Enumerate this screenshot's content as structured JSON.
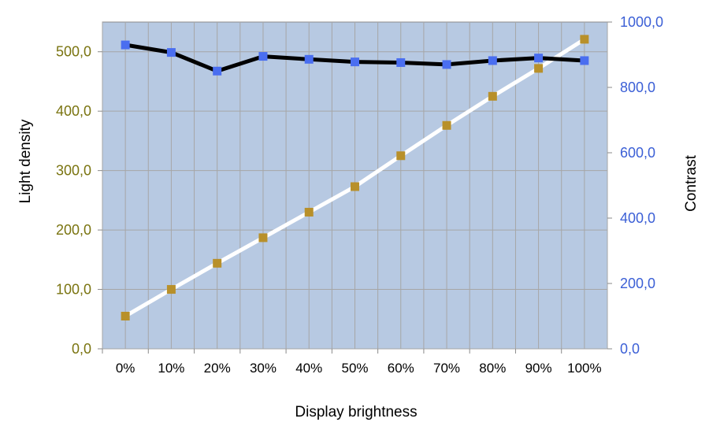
{
  "chart_data": {
    "type": "line",
    "categories": [
      "0%",
      "10%",
      "20%",
      "30%",
      "40%",
      "50%",
      "60%",
      "70%",
      "80%",
      "90%",
      "100%"
    ],
    "xlabel": "Display brightness",
    "ylabel_left": "Light density",
    "ylabel_right": "Contrast",
    "ylim_left": [
      0,
      550
    ],
    "ylim_right": [
      0,
      1000
    ],
    "yticks_left": [
      "0,0",
      "100,0",
      "200,0",
      "300,0",
      "400,0",
      "500,0"
    ],
    "yticks_right": [
      "0,0",
      "200,0",
      "400,0",
      "600,0",
      "800,0",
      "1000,0"
    ],
    "grid": true,
    "series": [
      {
        "axis": "left",
        "values": [
          55,
          100,
          144,
          187,
          230,
          273,
          325,
          376,
          425,
          472,
          521
        ],
        "line_color": "#ffffff",
        "marker_color": "#b8902a"
      },
      {
        "axis": "right",
        "values": [
          930,
          907,
          850,
          895,
          886,
          878,
          876,
          870,
          882,
          890,
          882
        ],
        "line_color": "#000000",
        "marker_color": "#4a6ef0"
      }
    ],
    "colors": {
      "plot_background": "#b7c9e2",
      "grid": "#a6a6a6",
      "left_axis_text": "#7a7410",
      "right_axis_text": "#3b5fd6"
    }
  }
}
